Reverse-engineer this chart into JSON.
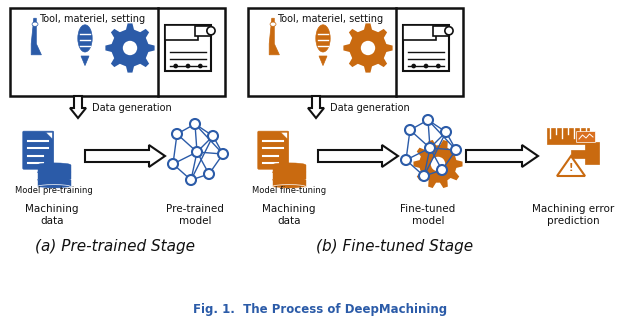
{
  "title": "Fig. 1.  The Process of DeepMachining",
  "subtitle_a": "(a) Pre-trained Stage",
  "subtitle_b": "(b) Fine-tuned Stage",
  "blue_color": "#2B5BA8",
  "orange_color": "#C96A10",
  "black_color": "#111111",
  "bg_color": "#ffffff",
  "box_a_label": "Tool, materiel, setting",
  "box_b_label": "Tool, materiel, setting",
  "data_gen_label": "Data generation",
  "model_pretrain_label": "Model pre-training",
  "model_finetune_label": "Model fine-tuning",
  "label_machining_data_a": "Machining\ndata",
  "label_pretrained_model": "Pre-trained\nmodel",
  "label_machining_data_b": "Machining\ndata",
  "label_finetuned_model": "Fine-tuned\nmodel",
  "label_machining_error": "Machining error\nprediction"
}
